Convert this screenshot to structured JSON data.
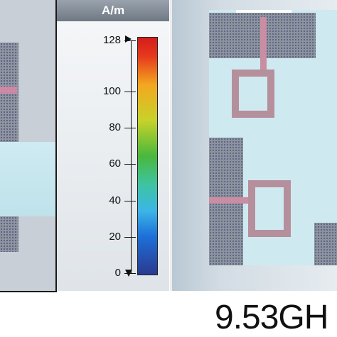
{
  "legend": {
    "unit": "A/m",
    "ticks": [
      {
        "label": "128",
        "value": 128
      },
      {
        "label": "100",
        "value": 100
      },
      {
        "label": "80",
        "value": 80
      },
      {
        "label": "60",
        "value": 60
      },
      {
        "label": "40",
        "value": 40
      },
      {
        "label": "20",
        "value": 20
      },
      {
        "label": "0",
        "value": 0
      }
    ],
    "max": 128,
    "min": 0,
    "colors": [
      "#2b3a8f",
      "#1d6fd8",
      "#3bb6e6",
      "#3fc3a2",
      "#49b83c",
      "#c7d22a",
      "#f3a81f",
      "#e63a1d",
      "#d41c1c"
    ]
  },
  "frequency_label": "9.53GH"
}
